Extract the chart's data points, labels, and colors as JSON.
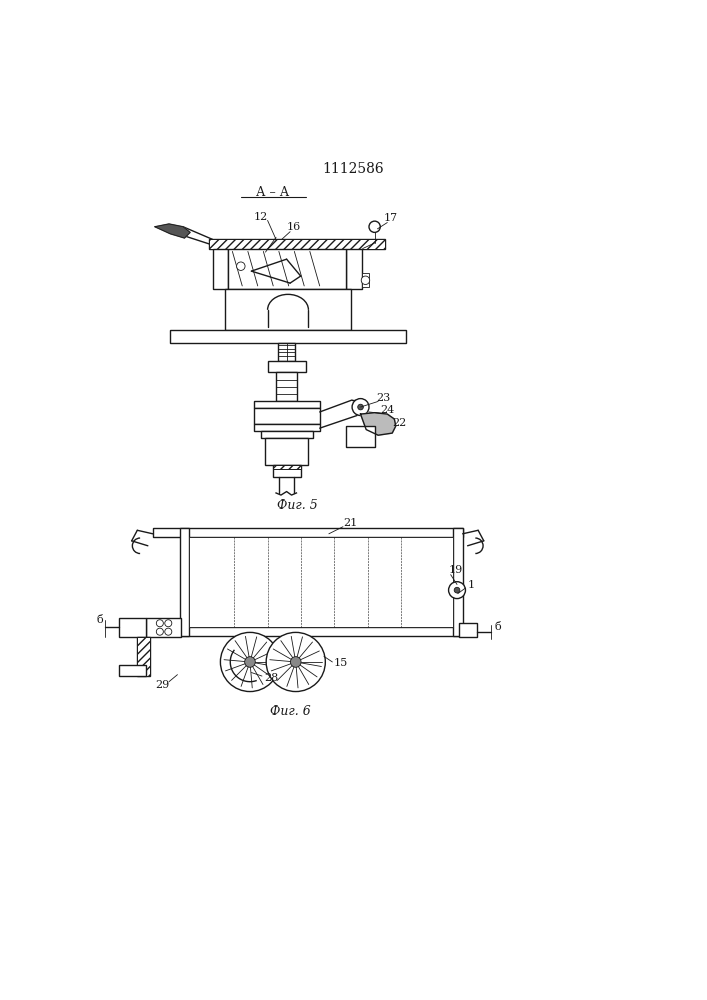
{
  "title": "1112586",
  "fig5_label": "Фиг. 5",
  "fig6_label": "Фиг. 6",
  "section_label": "А – А",
  "bg_color": "#ffffff",
  "line_color": "#1a1a1a"
}
